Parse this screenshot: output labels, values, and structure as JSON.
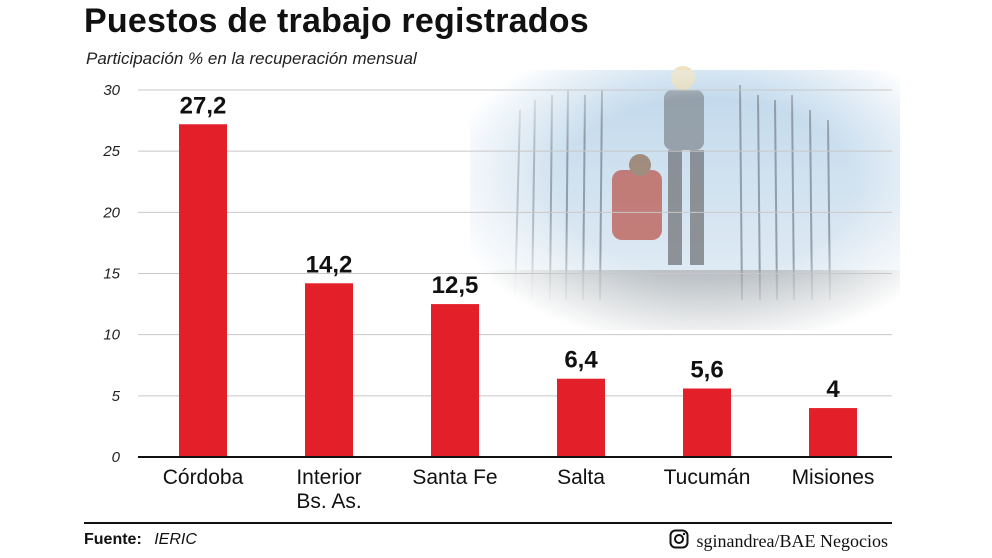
{
  "title": "Puestos de trabajo registrados",
  "subtitle": "Participación % en la recuperación mensual",
  "source_label": "Fuente:",
  "source_value": "IERIC",
  "credit": "sginandrea/BAE Negocios",
  "colors": {
    "bar": "#e3202a",
    "grid": "#c8c8c8",
    "axis": "#111111"
  },
  "photo_icon": "construction-workers-photo",
  "chart_data": {
    "type": "bar",
    "categories": [
      [
        "Córdoba"
      ],
      [
        "Interior",
        "Bs. As."
      ],
      [
        "Santa Fe"
      ],
      [
        "Salta"
      ],
      [
        "Tucumán"
      ],
      [
        "Misiones"
      ]
    ],
    "values": [
      27.2,
      14.2,
      12.5,
      6.4,
      5.6,
      4
    ],
    "value_labels": [
      "27,2",
      "14,2",
      "12,5",
      "6,4",
      "5,6",
      "4"
    ],
    "yticks": [
      0,
      5,
      10,
      15,
      20,
      25,
      30
    ],
    "ylim": [
      0,
      30
    ],
    "grid": true,
    "xlabel": "",
    "ylabel": ""
  }
}
